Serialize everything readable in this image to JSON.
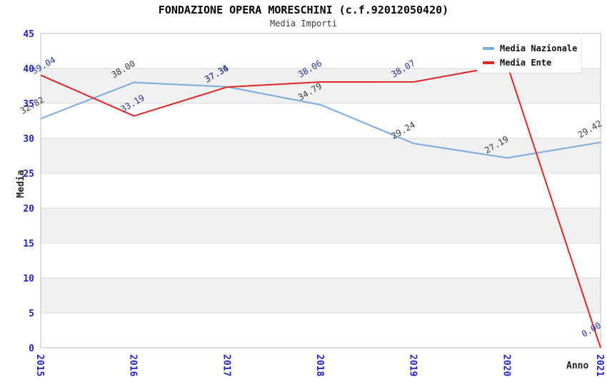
{
  "title": "FONDAZIONE OPERA MORESCHINI (c.f.92012050420)",
  "subtitle": "Media Importi",
  "axes": {
    "y_label": "Media",
    "x_label": "Anno"
  },
  "legend": {
    "position": "top-right",
    "items": [
      {
        "label": "Media Nazionale",
        "color": "#79abdf"
      },
      {
        "label": "Media Ente",
        "color": "#e02525"
      }
    ]
  },
  "colors": {
    "tick_label": "#2222cc",
    "national_series_line": "#79abdf",
    "national_series_point_labels": "#3a3a3a",
    "ente_series_line": "#e02525",
    "ente_series_point_labels": "#2233aa",
    "band_fill": "#f0f0f0",
    "gridline": "#d9d9d9",
    "plot_border": "#bbbbbb"
  },
  "chart_data": {
    "type": "line",
    "title": "FONDAZIONE OPERA MORESCHINI (c.f.92012050420)",
    "subtitle": "Media Importi",
    "xlabel": "Anno",
    "ylabel": "Media",
    "ylim": [
      0,
      45
    ],
    "y_ticks": [
      0,
      5,
      10,
      15,
      20,
      25,
      30,
      35,
      40,
      45
    ],
    "categories": [
      "2015",
      "2016",
      "2017",
      "2018",
      "2019",
      "2020",
      "2021"
    ],
    "series": [
      {
        "name": "Media Nazionale",
        "color": "#79abdf",
        "label_color": "#3a3a3a",
        "values": [
          32.82,
          38.0,
          37.36,
          34.79,
          29.24,
          27.19,
          29.42
        ],
        "labels": [
          "32.82",
          "38.00",
          "37.36",
          "34.79",
          "29.24",
          "27.19",
          "29.42"
        ]
      },
      {
        "name": "Media Ente",
        "color": "#e02525",
        "label_color": "#2233aa",
        "values": [
          39.04,
          33.19,
          37.34,
          38.06,
          38.07,
          40.5,
          0.0
        ],
        "labels": [
          "39.04",
          "33.19",
          "37.34",
          "38.06",
          "38.07",
          "",
          "0.00"
        ]
      }
    ],
    "legend_position": "top-right",
    "grid": "horizontal gray bands every 5 units (5-10, 15-20, 25-30, 35-40)"
  }
}
